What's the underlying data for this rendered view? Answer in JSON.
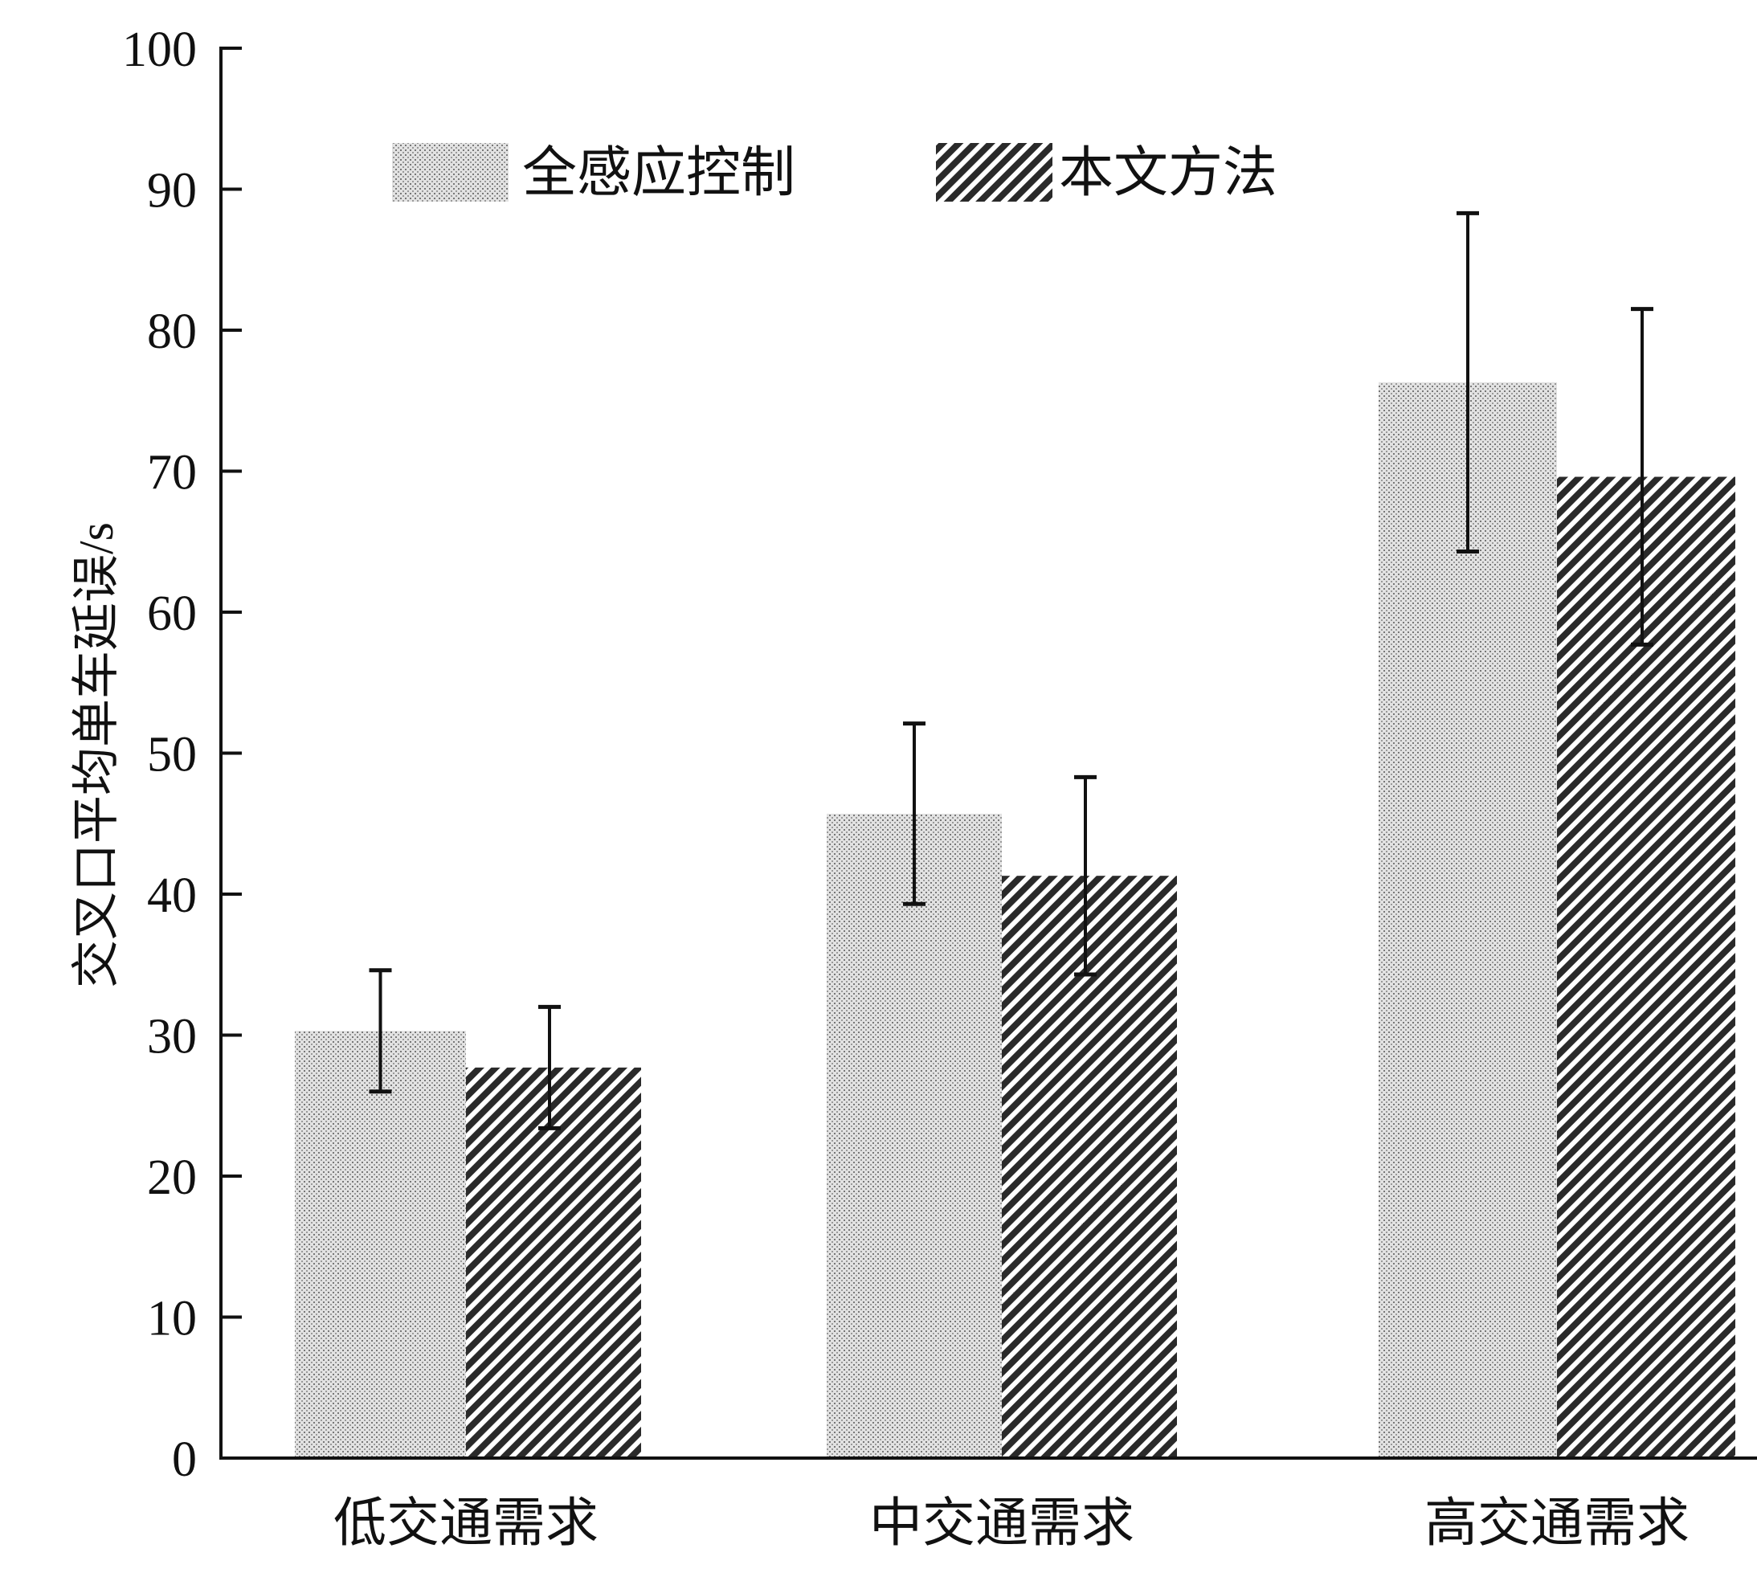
{
  "chart_data": {
    "type": "bar",
    "title": "",
    "xlabel": "",
    "ylabel": "交叉口平均单车延误/s",
    "ylim": [
      0,
      100
    ],
    "yticks": [
      0,
      10,
      20,
      30,
      40,
      50,
      60,
      70,
      80,
      90,
      100
    ],
    "grid": false,
    "legend_position": "top",
    "categories": [
      "低交通需求",
      "中交通需求",
      "高交通需求"
    ],
    "series": [
      {
        "name": "全感应控制",
        "values": [
          30.3,
          45.7,
          76.3
        ],
        "errors": [
          4.3,
          6.4,
          12.0
        ],
        "pattern": "dots",
        "color": "#b8b8b8"
      },
      {
        "name": "本文方法",
        "values": [
          27.7,
          41.3,
          69.6
        ],
        "errors": [
          4.3,
          7.0,
          11.9
        ],
        "pattern": "hatch",
        "color": "#2a2a2a"
      }
    ]
  }
}
